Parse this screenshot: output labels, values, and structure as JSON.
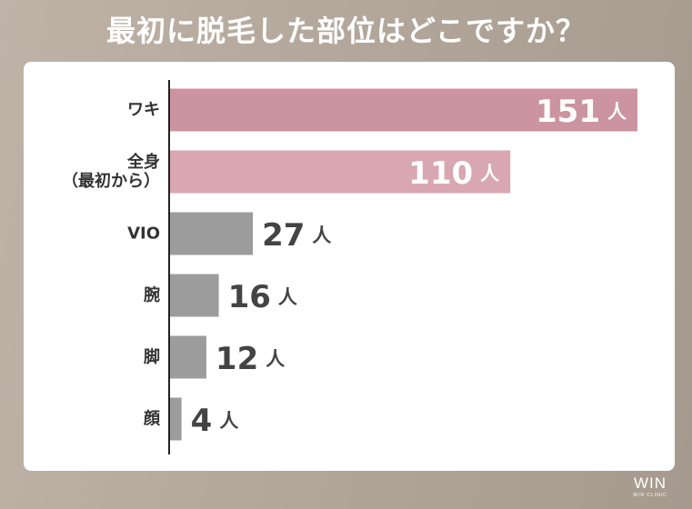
{
  "title": "最初に脱毛した部位はどこですか？",
  "chart_data": {
    "type": "bar",
    "orientation": "horizontal",
    "title": "最初に脱毛した部位はどこですか？",
    "unit": "人",
    "categories": [
      [
        "ワキ"
      ],
      [
        "全身",
        "（最初から）"
      ],
      [
        "VIO"
      ],
      [
        "腕"
      ],
      [
        "脚"
      ],
      [
        "顔"
      ]
    ],
    "values": [
      151,
      110,
      27,
      16,
      12,
      4
    ],
    "bar_colors": [
      "#cc94a0",
      "#d8a7b1",
      "#9c9c9c",
      "#9c9c9c",
      "#9c9c9c",
      "#9c9c9c"
    ],
    "label_inside_colors": [
      "#ffffff",
      "#ffffff",
      null,
      null,
      null,
      null
    ],
    "label_color": "#444444",
    "xlim": [
      0,
      155
    ]
  },
  "logo": {
    "main": "WIN",
    "sub": "WIN CLINIC"
  }
}
